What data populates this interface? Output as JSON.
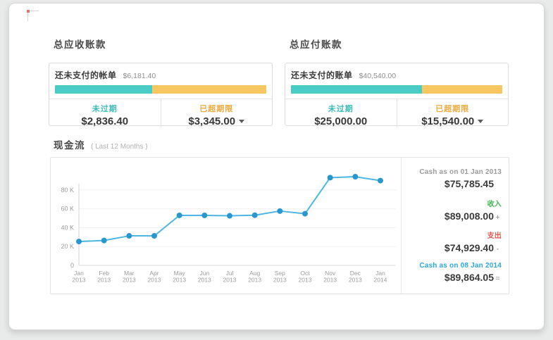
{
  "receivables": {
    "title": "总应收账款",
    "unpaid_label": "还未支付的帐单",
    "unpaid_amount": "$6,181.40",
    "bar": {
      "current_pct": 46,
      "current_color": "#4accc6",
      "overdue_color": "#f7c862"
    },
    "current": {
      "label": "未过期",
      "amount": "$2,836.40"
    },
    "overdue": {
      "label": "已超期限",
      "amount": "$3,345.00"
    }
  },
  "payables": {
    "title": "总应付账款",
    "unpaid_label": "还未支付的账单",
    "unpaid_amount": "$40,540.00",
    "bar": {
      "current_pct": 62,
      "current_color": "#4accc6",
      "overdue_color": "#f7c862"
    },
    "current": {
      "label": "未过期",
      "amount": "$25,000.00"
    },
    "overdue": {
      "label": "已超期限",
      "amount": "$15,540.00"
    }
  },
  "cashflow": {
    "title": "现金流",
    "subtitle": "( Last 12 Months )",
    "summary": {
      "opening": {
        "label": "Cash as on 01 Jan 2013",
        "amount": "$75,785.45",
        "op": ""
      },
      "incoming": {
        "label": "收入",
        "amount": "$89,008.00",
        "op": "+"
      },
      "outgoing": {
        "label": "支出",
        "amount": "$74,929.40",
        "op": "-"
      },
      "closing": {
        "label": "Cash as on 08 Jan 2014",
        "amount": "$89,864.05",
        "op": "="
      }
    }
  },
  "chart_data": {
    "type": "line",
    "title": "现金流 (Last 12 Months)",
    "x": [
      "Jan 2013",
      "Feb 2013",
      "Mar 2013",
      "Apr 2013",
      "May 2013",
      "Jun 2013",
      "Jul 2013",
      "Aug 2013",
      "Sep 2013",
      "Oct 2013",
      "Nov 2013",
      "Dec 2013",
      "Jan 2014"
    ],
    "values": [
      25300,
      26400,
      31300,
      31300,
      53000,
      53000,
      52600,
      53200,
      57600,
      54800,
      93000,
      94000,
      89864
    ],
    "ylim": [
      0,
      100000
    ],
    "ytick_step": 20000,
    "ytick_labels": [
      "0",
      "20 K",
      "40 K",
      "60 K",
      "80 K"
    ],
    "xlabel": "",
    "ylabel": "",
    "grid": true,
    "legend": "none",
    "line_color": "#4fb6e2",
    "dot_color": "#2897ce"
  }
}
